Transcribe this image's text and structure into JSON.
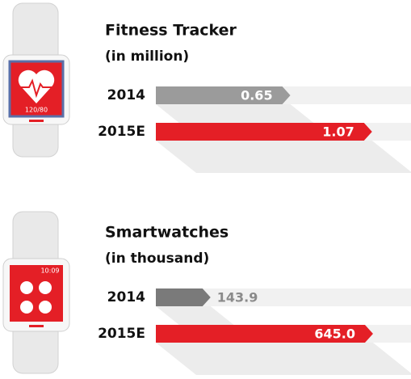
{
  "chart_data": [
    {
      "type": "bar",
      "title": "Fitness Tracker",
      "subtitle": "(in million)",
      "categories": [
        "2014",
        "2015E"
      ],
      "values": [
        0.65,
        1.07
      ],
      "colors": [
        "#9b9b9b",
        "#e41f26"
      ],
      "xlim": [
        0,
        1.1
      ]
    },
    {
      "type": "bar",
      "title": "Smartwatches",
      "subtitle": "(in thousand)",
      "categories": [
        "2014",
        "2015E"
      ],
      "values": [
        143.9,
        645
      ],
      "value_labels": [
        "143.9",
        "645.0"
      ],
      "colors": [
        "#7a7a7a",
        "#e41f26"
      ],
      "xlim": [
        0,
        660
      ]
    }
  ],
  "icons": {
    "heart_reading": "120/80",
    "clock": "10:09"
  }
}
